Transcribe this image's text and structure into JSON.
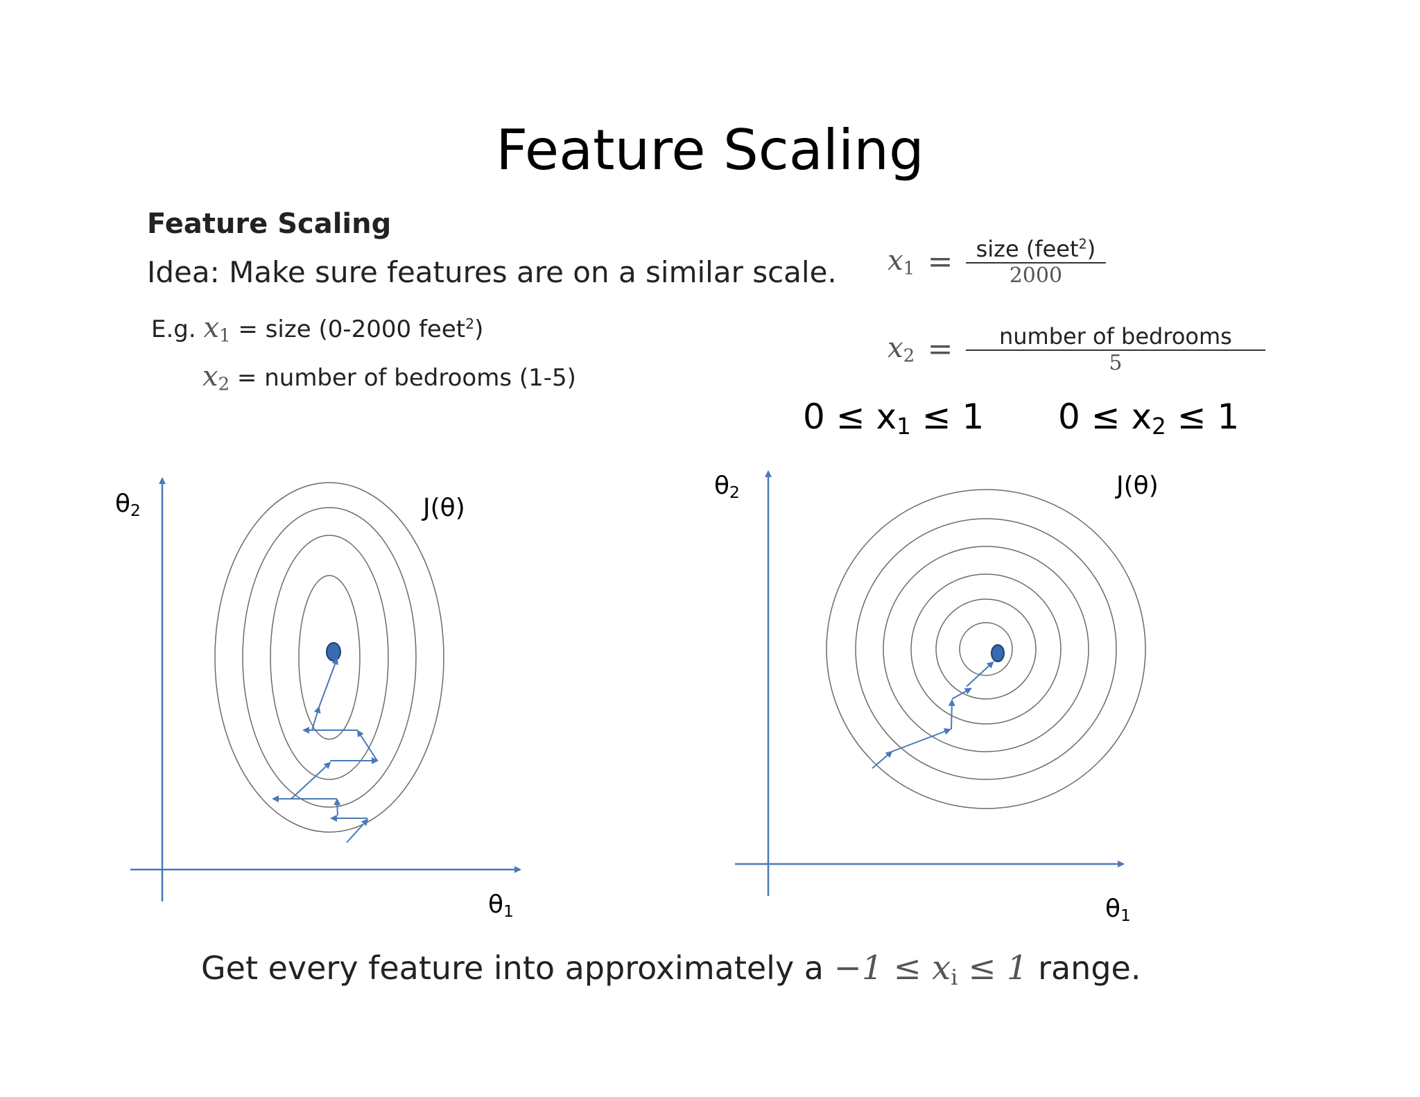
{
  "title": "Feature Scaling",
  "subheading": "Feature Scaling",
  "idea": "Idea: Make sure features are on a similar scale.",
  "example": {
    "prefix": "E.g.",
    "x1_var": "x",
    "x1_sub": "1",
    "x1_desc": "= size (0-2000 feet",
    "x1_sup": "2",
    "x1_close": ")",
    "x2_var": "x",
    "x2_sub": "2",
    "x2_desc": "= number of bedrooms (1-5)"
  },
  "formulas": {
    "f1_var": "x",
    "f1_sub": "1",
    "f1_eq": "=",
    "f1_num": "size (feet",
    "f1_num_sup": "2",
    "f1_num_close": ")",
    "f1_den": "2000",
    "f2_var": "x",
    "f2_sub": "2",
    "f2_eq": "=",
    "f2_num": "number of bedrooms",
    "f2_den": "5"
  },
  "ranges": {
    "r1_pre": "0 ≤ x",
    "r1_sub": "1",
    "r1_post": "≤ 1",
    "r2_pre": "0 ≤ x",
    "r2_sub": "2",
    "r2_post": "≤ 1"
  },
  "left_plot": {
    "y_label": "θ",
    "y_sub": "2",
    "x_label": "θ",
    "x_sub": "1",
    "cost_label": "J(θ)"
  },
  "right_plot": {
    "y_label": "θ",
    "y_sub": "2",
    "x_label": "θ",
    "x_sub": "1",
    "cost_label": "J(θ)"
  },
  "bottom": {
    "prefix": "Get every feature into approximately a",
    "math": "−1 ≤ x",
    "math_sub": "i",
    "math_post": "≤ 1",
    "suffix": "range."
  },
  "colors": {
    "axis": "#4a78b8",
    "contour": "#6b6b6b",
    "minimum": "#3a6ab0"
  }
}
